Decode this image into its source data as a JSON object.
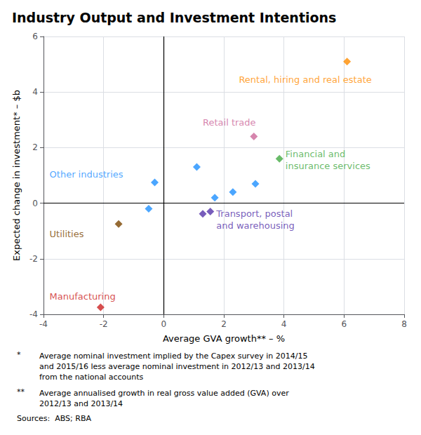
{
  "chart_data": {
    "type": "scatter",
    "title": "Industry Output and Investment Intentions",
    "xlabel": "Average GVA growth** – %",
    "ylabel": "Expected change in investment* – $b",
    "xlim": [
      -4,
      8
    ],
    "ylim": [
      -4,
      6
    ],
    "xticks": [
      -4,
      -2,
      0,
      2,
      4,
      6,
      8
    ],
    "yticks": [
      -4,
      -2,
      0,
      2,
      4,
      6
    ],
    "grid": true,
    "marker": "diamond",
    "points": [
      {
        "x": 6.1,
        "y": 5.1,
        "color": "#FF8C00",
        "label": "Rental, hiring and real estate",
        "label_x": 2.5,
        "label_y": 4.45
      },
      {
        "x": 3.0,
        "y": 2.4,
        "color": "#CC6699",
        "label": "Retail trade",
        "label_x": 1.3,
        "label_y": 2.9
      },
      {
        "x": 3.85,
        "y": 1.6,
        "color": "#44AA44",
        "label": "Financial and\ninsurance services",
        "label_x": 4.05,
        "label_y": 1.55
      },
      {
        "x": -2.1,
        "y": -3.75,
        "color": "#CC2222",
        "label": "Manufacturing",
        "label_x": -3.8,
        "label_y": -3.35
      },
      {
        "x": -1.5,
        "y": -0.75,
        "color": "#7B4500",
        "label": "Utilities",
        "label_x": -3.8,
        "label_y": -1.1
      },
      {
        "x": -0.3,
        "y": 0.75,
        "color": "#1E90FF",
        "label": "Other industries",
        "label_x": -3.8,
        "label_y": 1.05
      },
      {
        "x": 1.1,
        "y": 1.3,
        "color": "#1E90FF"
      },
      {
        "x": 1.7,
        "y": 0.2,
        "color": "#1E90FF"
      },
      {
        "x": 2.3,
        "y": 0.4,
        "color": "#1E90FF"
      },
      {
        "x": 3.05,
        "y": 0.7,
        "color": "#1E90FF"
      },
      {
        "x": -0.5,
        "y": -0.2,
        "color": "#1E90FF"
      },
      {
        "x": 1.3,
        "y": -0.38,
        "color": "#5533AA",
        "label": "Transport, postal\nand warehousing",
        "label_x": 1.75,
        "label_y": -0.6
      },
      {
        "x": 1.55,
        "y": -0.3,
        "color": "#5533AA"
      }
    ],
    "footnotes": [
      {
        "mark": "*",
        "text": "Average nominal investment implied by the Capex survey in 2014/15\nand 2015/16 less average nominal investment in 2012/13 and 2013/14\nfrom the national accounts"
      },
      {
        "mark": "**",
        "text": "Average annualised growth in real gross value added (GVA) over\n2012/13 and 2013/14"
      }
    ],
    "sources": "Sources:  ABS; RBA"
  }
}
